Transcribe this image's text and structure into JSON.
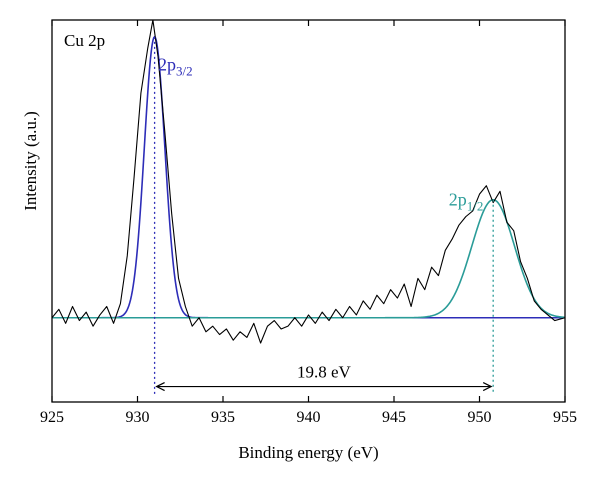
{
  "chart_data": {
    "type": "line",
    "title": "",
    "panel_label": "Cu 2p",
    "xlabel": "Binding energy (eV)",
    "ylabel": "Intensity (a.u.)",
    "xlim": [
      925,
      955
    ],
    "ylim": [
      -0.3,
      1.06
    ],
    "x_ticks": [
      925,
      930,
      935,
      940,
      945,
      950,
      955
    ],
    "y_ticks": [],
    "grid": false,
    "legend": "none",
    "baseline": 0,
    "fits": [
      {
        "name": "2p3/2",
        "center": 931.0,
        "height": 1.0,
        "sigma": 0.6,
        "color": "#2d2db8"
      },
      {
        "name": "2p1/2",
        "center": 950.8,
        "height": 0.42,
        "sigma": 1.25,
        "color": "#2a9c98"
      }
    ],
    "peak_labels": [
      {
        "main": "2p",
        "sub": "3/2",
        "x": 931.2,
        "y": 0.88,
        "color": "#2d2db8"
      },
      {
        "main": "2p",
        "sub": "1/2",
        "x": 948.2,
        "y": 0.4,
        "color": "#2a9c98"
      }
    ],
    "peak_markers": [
      {
        "x": 931.0,
        "y_top": 1.0,
        "color": "#2d2db8"
      },
      {
        "x": 950.8,
        "y_top": 0.42,
        "color": "#2a9c98"
      }
    ],
    "separation": {
      "from": 931.0,
      "to": 950.8,
      "y": -0.245,
      "label": "19.8 eV"
    },
    "raw_series": {
      "name": "",
      "color": "#000000",
      "x": [
        925.0,
        925.4,
        925.8,
        926.2,
        926.6,
        927.0,
        927.4,
        927.8,
        928.2,
        928.6,
        929.0,
        929.4,
        929.8,
        930.2,
        930.6,
        930.9,
        931.2,
        931.6,
        932.0,
        932.4,
        932.8,
        933.2,
        933.6,
        934.0,
        934.4,
        934.8,
        935.2,
        935.6,
        936.0,
        936.4,
        936.8,
        937.2,
        937.6,
        938.0,
        938.4,
        938.8,
        939.2,
        939.6,
        940.0,
        940.4,
        940.8,
        941.2,
        941.6,
        942.0,
        942.4,
        942.8,
        943.2,
        943.6,
        944.0,
        944.4,
        944.8,
        945.2,
        945.6,
        946.0,
        946.4,
        946.8,
        947.2,
        947.6,
        948.0,
        948.4,
        948.8,
        949.2,
        949.6,
        950.0,
        950.4,
        950.8,
        951.2,
        951.6,
        952.0,
        952.4,
        952.8,
        953.2,
        953.6,
        954.0,
        954.4,
        955.0
      ],
      "y": [
        0.0,
        0.03,
        -0.02,
        0.04,
        -0.01,
        0.02,
        -0.03,
        0.01,
        0.04,
        -0.02,
        0.05,
        0.22,
        0.5,
        0.8,
        0.96,
        1.06,
        0.93,
        0.66,
        0.37,
        0.14,
        0.04,
        -0.03,
        0.0,
        -0.05,
        -0.03,
        -0.06,
        -0.04,
        -0.08,
        -0.05,
        -0.07,
        -0.02,
        -0.09,
        -0.03,
        -0.01,
        -0.04,
        -0.03,
        0.0,
        -0.03,
        0.01,
        -0.02,
        0.02,
        -0.01,
        0.03,
        0.0,
        0.04,
        0.01,
        0.06,
        0.03,
        0.08,
        0.05,
        0.1,
        0.07,
        0.12,
        0.04,
        0.14,
        0.1,
        0.18,
        0.15,
        0.24,
        0.28,
        0.33,
        0.36,
        0.38,
        0.44,
        0.47,
        0.41,
        0.45,
        0.34,
        0.31,
        0.2,
        0.14,
        0.06,
        0.03,
        0.01,
        -0.01,
        0.0
      ]
    }
  }
}
